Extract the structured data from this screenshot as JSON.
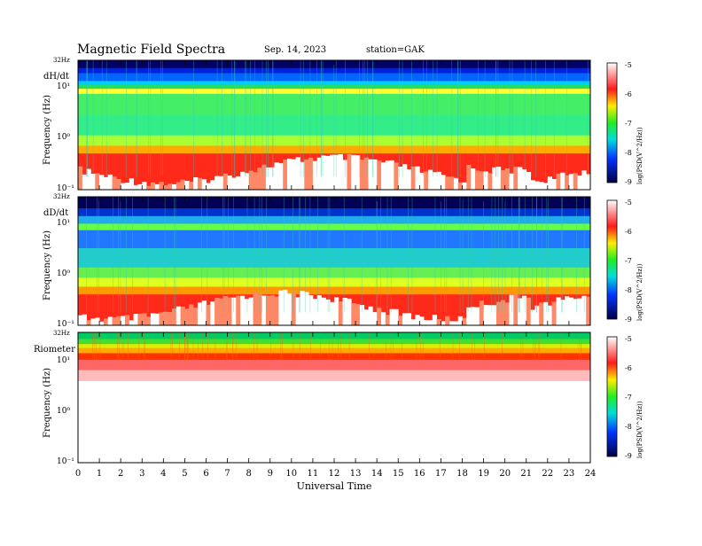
{
  "header": {
    "title": "Magnetic Field Spectra",
    "date": "Sep. 14, 2023",
    "station": "station=GAK"
  },
  "colorbar": {
    "label": "log(PSD(V^2/Hz))",
    "ticks": [
      "-5",
      "-6",
      "-7",
      "-8",
      "-9"
    ],
    "colors": [
      "#ffffff",
      "#ff0000",
      "#ffff00",
      "#00ff00",
      "#00ffff",
      "#0000ff",
      "#000044"
    ]
  },
  "chart_data": [
    {
      "type": "heatmap",
      "panel_label": "dH/dt",
      "ylabel": "Frequency (Hz)",
      "ytick_labels": [
        "32Hz",
        "10¹",
        "10⁰",
        "10⁻¹"
      ],
      "yscale": "log",
      "ylim": [
        0.1,
        32
      ],
      "xlim": [
        0,
        24
      ],
      "colorbar_range": [
        -9,
        -5
      ]
    },
    {
      "type": "heatmap",
      "panel_label": "dD/dt",
      "ylabel": "Frequency (Hz)",
      "ytick_labels": [
        "32Hz",
        "10¹",
        "10⁰",
        "10⁻¹"
      ],
      "yscale": "log",
      "ylim": [
        0.1,
        32
      ],
      "xlim": [
        0,
        24
      ],
      "colorbar_range": [
        -9,
        -5
      ]
    },
    {
      "type": "heatmap",
      "panel_label": "Riometer",
      "ylabel": "Frequency (Hz)",
      "ytick_labels": [
        "32Hz",
        "10¹",
        "10⁰",
        "10⁻¹"
      ],
      "yscale": "log",
      "ylim": [
        0.1,
        32
      ],
      "xlim": [
        0,
        24
      ],
      "colorbar_range": [
        -9,
        -5
      ]
    }
  ],
  "xaxis": {
    "label": "Universal Time",
    "ticks": [
      "0",
      "1",
      "2",
      "3",
      "4",
      "5",
      "6",
      "7",
      "8",
      "9",
      "10",
      "11",
      "12",
      "13",
      "14",
      "15",
      "16",
      "17",
      "18",
      "19",
      "20",
      "21",
      "22",
      "23",
      "24"
    ]
  }
}
